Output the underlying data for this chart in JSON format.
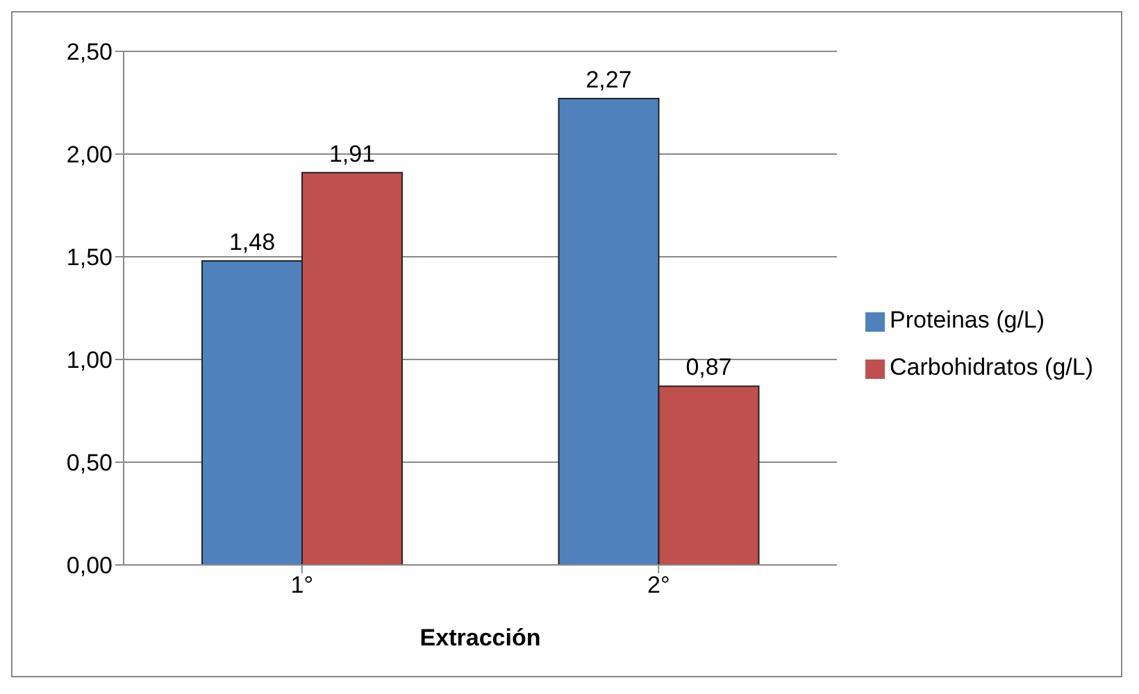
{
  "chart_data": {
    "type": "bar",
    "xlabel": "Extracción",
    "categories": [
      "1°",
      "2°"
    ],
    "series": [
      {
        "name": "Proteinas (g/L)",
        "color": "#4f81bd",
        "values": [
          1.48,
          2.27
        ],
        "value_labels": [
          "1,48",
          "2,27"
        ]
      },
      {
        "name": "Carbohidratos (g/L)",
        "color": "#c0504d",
        "values": [
          1.91,
          0.87
        ],
        "value_labels": [
          "1,91",
          "0,87"
        ]
      }
    ],
    "ylim": [
      0,
      2.5
    ],
    "yticks": [
      {
        "value": 0,
        "label": "0,00"
      },
      {
        "value": 0.5,
        "label": "0,50"
      },
      {
        "value": 1,
        "label": "1,00"
      },
      {
        "value": 1.5,
        "label": "1,50"
      },
      {
        "value": 2,
        "label": "2,00"
      },
      {
        "value": 2.5,
        "label": "2,50"
      }
    ],
    "grid": "y",
    "legend": "right"
  }
}
